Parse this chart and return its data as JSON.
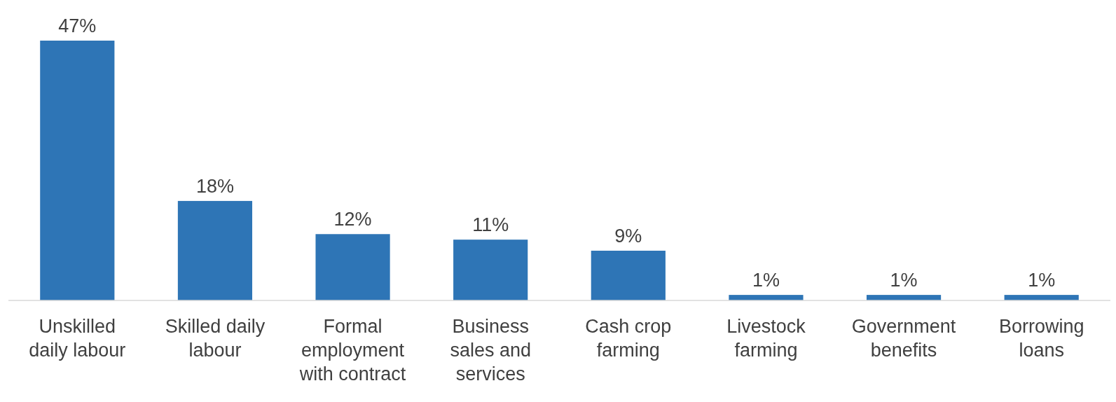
{
  "chart_data": {
    "type": "bar",
    "categories": [
      "Unskilled daily labour",
      "Skilled daily labour",
      "Formal employment with contract",
      "Business sales and services",
      "Cash crop farming",
      "Livestock farming",
      "Government benefits",
      "Borrowing loans"
    ],
    "values": [
      47,
      18,
      12,
      11,
      9,
      1,
      1,
      1
    ],
    "value_labels": [
      "47%",
      "18%",
      "12%",
      "11%",
      "9%",
      "1%",
      "1%",
      "1%"
    ],
    "color": "#2e75b6"
  }
}
